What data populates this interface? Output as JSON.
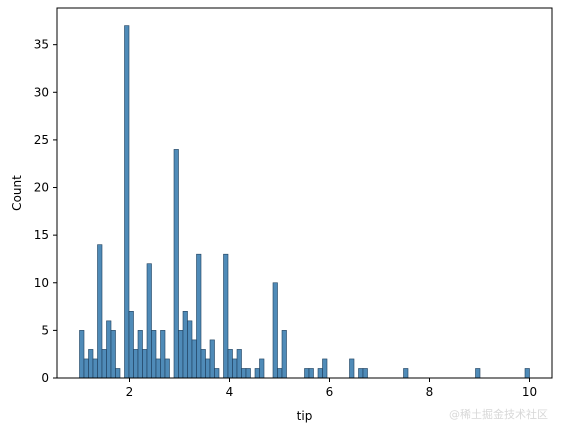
{
  "chart_data": {
    "type": "bar",
    "title": "",
    "xlabel": "tip",
    "ylabel": "Count",
    "xlim": [
      0.55,
      10.45
    ],
    "ylim": [
      0,
      38.85
    ],
    "bin_width": 0.09,
    "bin_start": 1.0,
    "bar_color": "#4f8bb8",
    "edge_color": "#1f3f5c",
    "x_ticks": [
      2,
      4,
      6,
      8,
      10
    ],
    "y_ticks": [
      0,
      5,
      10,
      15,
      20,
      25,
      30,
      35
    ],
    "bins": [
      {
        "x": 1.045,
        "value": 5
      },
      {
        "x": 1.135,
        "value": 2
      },
      {
        "x": 1.225,
        "value": 3
      },
      {
        "x": 1.315,
        "value": 2
      },
      {
        "x": 1.405,
        "value": 14
      },
      {
        "x": 1.495,
        "value": 3
      },
      {
        "x": 1.585,
        "value": 6
      },
      {
        "x": 1.675,
        "value": 5
      },
      {
        "x": 1.765,
        "value": 1
      },
      {
        "x": 1.945,
        "value": 37
      },
      {
        "x": 2.035,
        "value": 7
      },
      {
        "x": 2.125,
        "value": 3
      },
      {
        "x": 2.215,
        "value": 5
      },
      {
        "x": 2.305,
        "value": 3
      },
      {
        "x": 2.395,
        "value": 12
      },
      {
        "x": 2.485,
        "value": 5
      },
      {
        "x": 2.575,
        "value": 2
      },
      {
        "x": 2.665,
        "value": 5
      },
      {
        "x": 2.755,
        "value": 2
      },
      {
        "x": 2.935,
        "value": 24
      },
      {
        "x": 3.025,
        "value": 5
      },
      {
        "x": 3.115,
        "value": 7
      },
      {
        "x": 3.205,
        "value": 6
      },
      {
        "x": 3.295,
        "value": 4
      },
      {
        "x": 3.385,
        "value": 13
      },
      {
        "x": 3.475,
        "value": 3
      },
      {
        "x": 3.565,
        "value": 2
      },
      {
        "x": 3.655,
        "value": 4
      },
      {
        "x": 3.745,
        "value": 1
      },
      {
        "x": 3.925,
        "value": 13
      },
      {
        "x": 4.015,
        "value": 3
      },
      {
        "x": 4.105,
        "value": 2
      },
      {
        "x": 4.195,
        "value": 3
      },
      {
        "x": 4.285,
        "value": 1
      },
      {
        "x": 4.375,
        "value": 1
      },
      {
        "x": 4.555,
        "value": 1
      },
      {
        "x": 4.645,
        "value": 2
      },
      {
        "x": 4.915,
        "value": 10
      },
      {
        "x": 5.005,
        "value": 1
      },
      {
        "x": 5.095,
        "value": 5
      },
      {
        "x": 5.545,
        "value": 1
      },
      {
        "x": 5.635,
        "value": 1
      },
      {
        "x": 5.815,
        "value": 1
      },
      {
        "x": 5.905,
        "value": 2
      },
      {
        "x": 6.445,
        "value": 2
      },
      {
        "x": 6.625,
        "value": 1
      },
      {
        "x": 6.715,
        "value": 1
      },
      {
        "x": 7.525,
        "value": 1
      },
      {
        "x": 8.965,
        "value": 1
      },
      {
        "x": 9.955,
        "value": 1
      }
    ]
  },
  "watermark": "@稀土掘金技术社区"
}
